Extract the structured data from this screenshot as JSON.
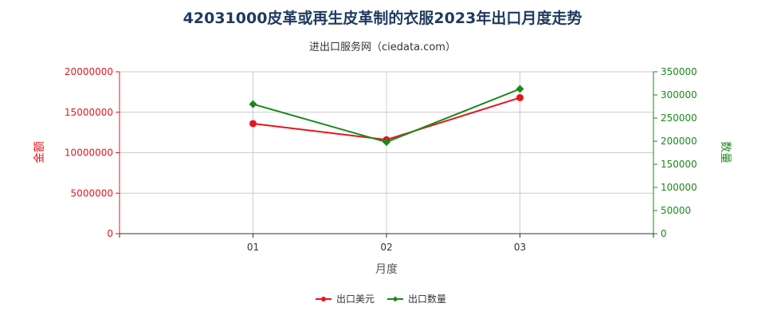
{
  "title": "42031000皮革或再生皮革制的衣服2023年出口月度走势",
  "subtitle": "进出口服务网（ciedata.com）",
  "colors": {
    "export_value": "#e8141c",
    "export_qty": "#1a8a1a",
    "title": "#1f3a5f",
    "grid": "#cccccc",
    "axis": "#333333"
  },
  "chart_data": {
    "type": "line",
    "title": "42031000皮革或再生皮革制的衣服2023年出口月度走势",
    "subtitle": "进出口服务网（ciedata.com）",
    "categories": [
      "01",
      "02",
      "03"
    ],
    "xlabel": "月度",
    "ylabel_left": "金额",
    "ylabel_right": "数量",
    "ylim_left": [
      0,
      20000000
    ],
    "ylim_right": [
      0,
      350000
    ],
    "yticks_left": [
      "0",
      "5000000",
      "10000000",
      "15000000",
      "20000000"
    ],
    "yticks_right": [
      "0",
      "50000",
      "100000",
      "150000",
      "200000",
      "250000",
      "300000",
      "350000"
    ],
    "grid": true,
    "legend_position": "bottom-center",
    "series": [
      {
        "name": "出口美元",
        "axis": "left",
        "marker": "circle",
        "values": [
          13600000,
          11600000,
          16800000
        ]
      },
      {
        "name": "出口数量",
        "axis": "right",
        "marker": "diamond",
        "values": [
          280000,
          198000,
          313000
        ]
      }
    ]
  }
}
